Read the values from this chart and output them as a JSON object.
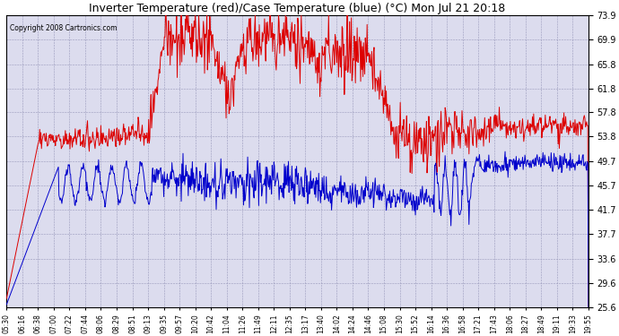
{
  "title": "Inverter Temperature (red)/Case Temperature (blue) (°C) Mon Jul 21 20:18",
  "copyright": "Copyright 2008 Cartronics.com",
  "yticks": [
    25.6,
    29.6,
    33.6,
    37.7,
    41.7,
    45.7,
    49.7,
    53.8,
    57.8,
    61.8,
    65.8,
    69.9,
    73.9
  ],
  "ymin": 25.6,
  "ymax": 73.9,
  "bg_color": "#ffffff",
  "plot_bg_color": "#dcdcee",
  "grid_color": "#9999bb",
  "xtick_labels": [
    "05:30",
    "06:16",
    "06:38",
    "07:00",
    "07:22",
    "07:44",
    "08:06",
    "08:29",
    "08:51",
    "09:13",
    "09:35",
    "09:57",
    "10:20",
    "10:42",
    "11:04",
    "11:26",
    "11:49",
    "12:11",
    "12:35",
    "13:17",
    "13:40",
    "14:02",
    "14:24",
    "14:46",
    "15:08",
    "15:30",
    "15:52",
    "16:14",
    "16:36",
    "16:58",
    "17:21",
    "17:43",
    "18:06",
    "18:27",
    "18:49",
    "19:11",
    "19:33",
    "19:55"
  ],
  "red_line_color": "#dd0000",
  "blue_line_color": "#0000cc",
  "figsize": [
    6.9,
    3.75
  ],
  "dpi": 100
}
